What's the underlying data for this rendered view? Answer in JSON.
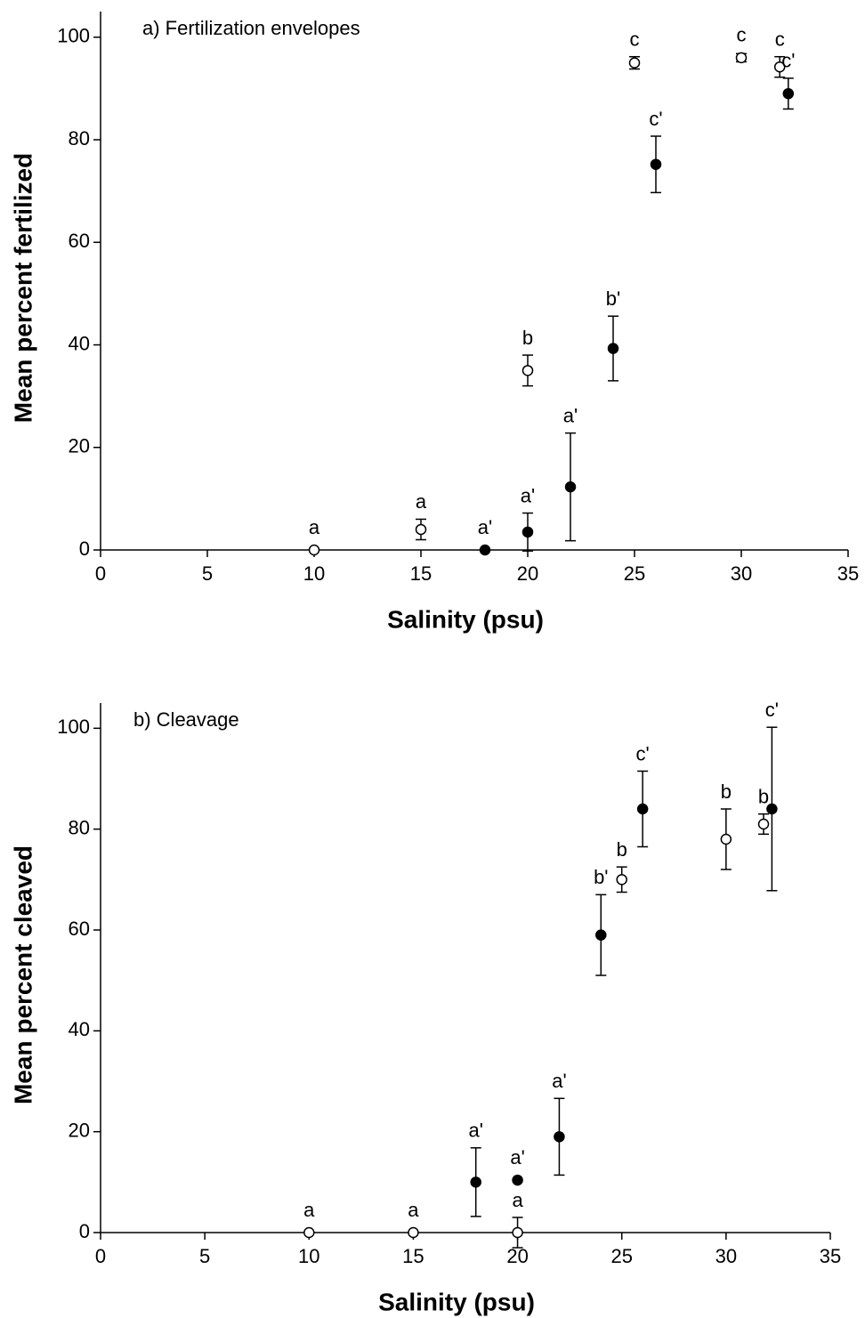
{
  "chart_data": [
    {
      "type": "scatter",
      "title": "a) Fertilization envelopes",
      "x_label": "Salinity (psu)",
      "y_label": "Mean percent fertilized",
      "xlim": [
        0,
        35
      ],
      "xticks": [
        0,
        5,
        10,
        15,
        20,
        25,
        30,
        35
      ],
      "ylim": [
        0,
        105
      ],
      "yticks": [
        0,
        20,
        40,
        60,
        80,
        100
      ],
      "series": [
        {
          "marker": "open",
          "color": "#000000",
          "x": [
            10,
            15,
            20,
            25,
            30,
            31.8
          ],
          "values": [
            0,
            4,
            35,
            95,
            96,
            94.2
          ],
          "errors": [
            0,
            2,
            3,
            1.2,
            0.8,
            2
          ],
          "labels": [
            "a",
            "a",
            "b",
            "c",
            "c",
            "c"
          ]
        },
        {
          "marker": "filled",
          "color": "#000000",
          "x": [
            18,
            20,
            22,
            24,
            26,
            32.2
          ],
          "values": [
            0,
            3.5,
            12.3,
            39.3,
            75.2,
            89
          ],
          "errors": [
            0,
            3.7,
            10.5,
            6.3,
            5.5,
            3
          ],
          "labels": [
            "a'",
            "a'",
            "a'",
            "b'",
            "c'",
            "c'"
          ]
        }
      ]
    },
    {
      "type": "scatter",
      "title": "b) Cleavage",
      "x_label": "Salinity (psu)",
      "y_label": "Mean percent cleaved",
      "xlim": [
        0,
        35
      ],
      "xticks": [
        0,
        5,
        10,
        15,
        20,
        25,
        30,
        35
      ],
      "ylim": [
        0,
        105
      ],
      "yticks": [
        0,
        20,
        40,
        60,
        80,
        100
      ],
      "series": [
        {
          "marker": "open",
          "color": "#000000",
          "x": [
            10,
            15,
            20,
            25,
            30,
            31.8
          ],
          "values": [
            0,
            0,
            0,
            70,
            78,
            81
          ],
          "errors": [
            0,
            0,
            3,
            2.5,
            6,
            2
          ],
          "labels": [
            "a",
            "a",
            "a",
            "b",
            "b",
            "b"
          ]
        },
        {
          "marker": "filled",
          "color": "#000000",
          "x": [
            18,
            20,
            22,
            24,
            26,
            32.2
          ],
          "values": [
            10,
            10.4,
            19,
            59,
            84,
            84
          ],
          "errors": [
            6.8,
            0,
            7.6,
            8,
            7.5,
            16.2
          ],
          "labels": [
            "a'",
            "a'",
            "a'",
            "b'",
            "c'",
            "c'"
          ]
        }
      ]
    }
  ]
}
